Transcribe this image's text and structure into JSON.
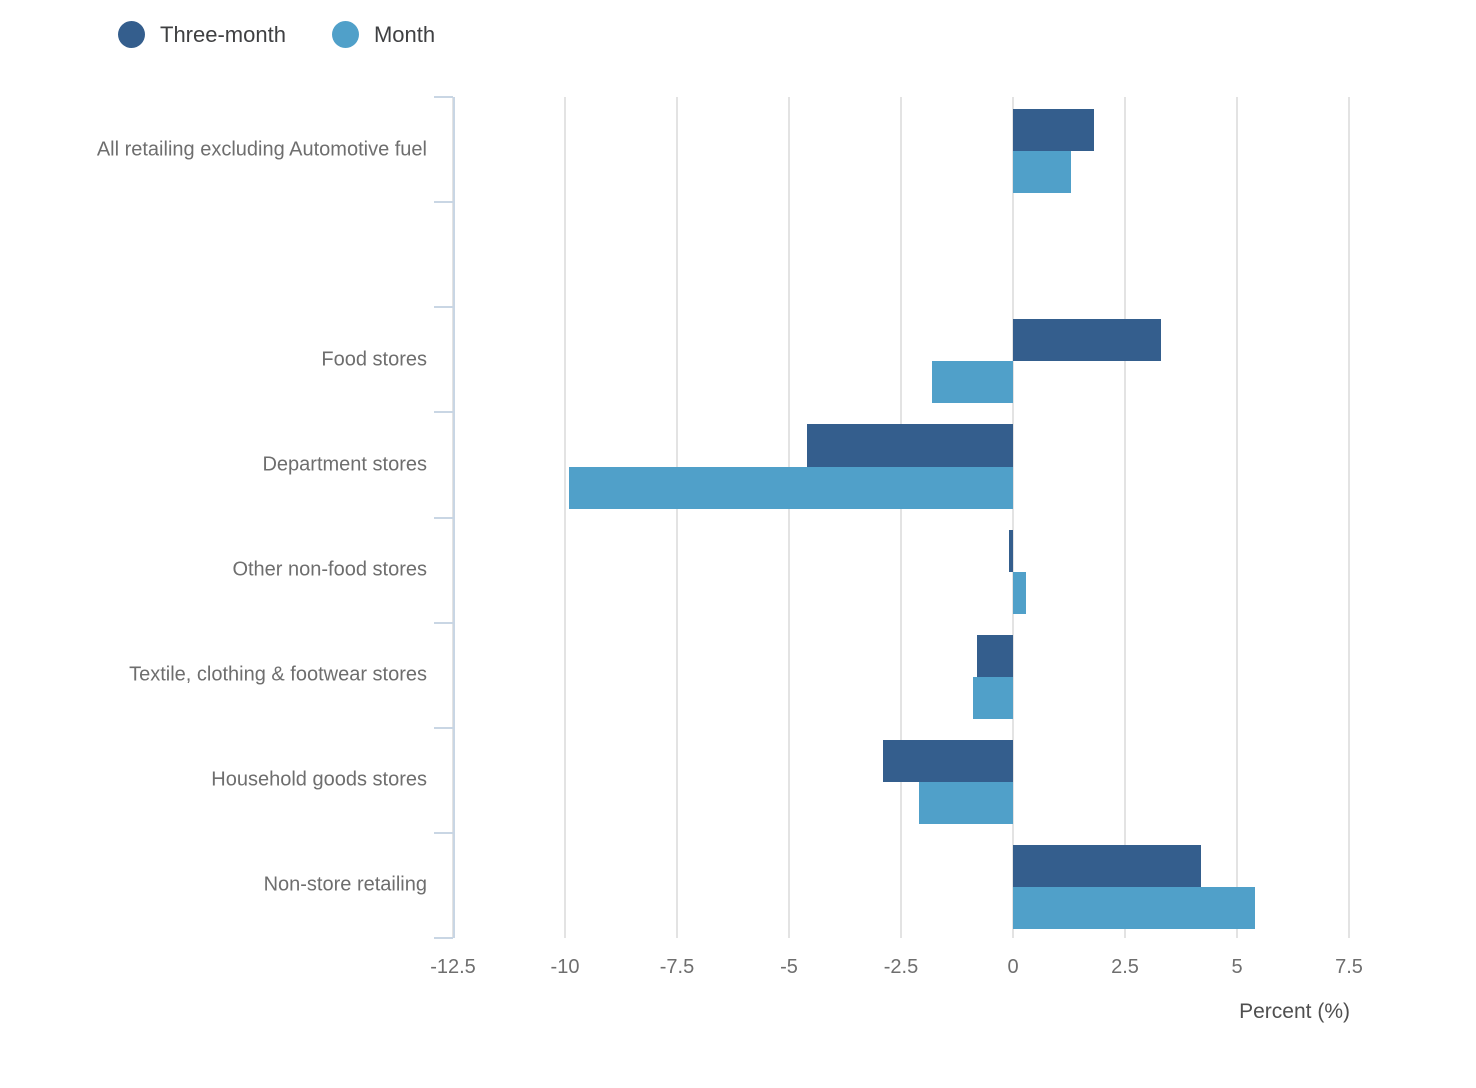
{
  "legend": {
    "items": [
      {
        "label": "Three-month",
        "color": "#345E8D"
      },
      {
        "label": "Month",
        "color": "#50A0C9"
      }
    ]
  },
  "chart_data": {
    "type": "bar",
    "orientation": "horizontal",
    "title": "",
    "xlabel": "Percent (%)",
    "ylabel": "",
    "xlim": [
      -12.5,
      10
    ],
    "grid": true,
    "legend_position": "top-left",
    "categories": [
      "All retailing excluding Automotive fuel",
      "Food stores",
      "Department stores",
      "Other non-food stores",
      "Textile, clothing & footwear stores",
      "Household goods stores",
      "Non-store retailing"
    ],
    "series": [
      {
        "name": "Three-month",
        "color": "#345E8D",
        "values": [
          1.8,
          3.3,
          -4.6,
          -0.1,
          -0.8,
          -2.9,
          4.2
        ]
      },
      {
        "name": "Month",
        "color": "#50A0C9",
        "values": [
          1.3,
          -1.8,
          -9.9,
          0.3,
          -0.9,
          -2.1,
          5.4
        ]
      }
    ],
    "x_ticks": [
      {
        "label": "-12.5",
        "value": -12.5
      },
      {
        "label": "-10",
        "value": -10
      },
      {
        "label": "-7.5",
        "value": -7.5
      },
      {
        "label": "-5",
        "value": -5
      },
      {
        "label": "-2.5",
        "value": -2.5
      },
      {
        "label": "0",
        "value": 0
      },
      {
        "label": "2.5",
        "value": 2.5
      },
      {
        "label": "5",
        "value": 5
      },
      {
        "label": "7.5",
        "value": 7.5
      }
    ],
    "band_slots": [
      0,
      2,
      3,
      4,
      5,
      6,
      7
    ],
    "n_slots": 8
  }
}
